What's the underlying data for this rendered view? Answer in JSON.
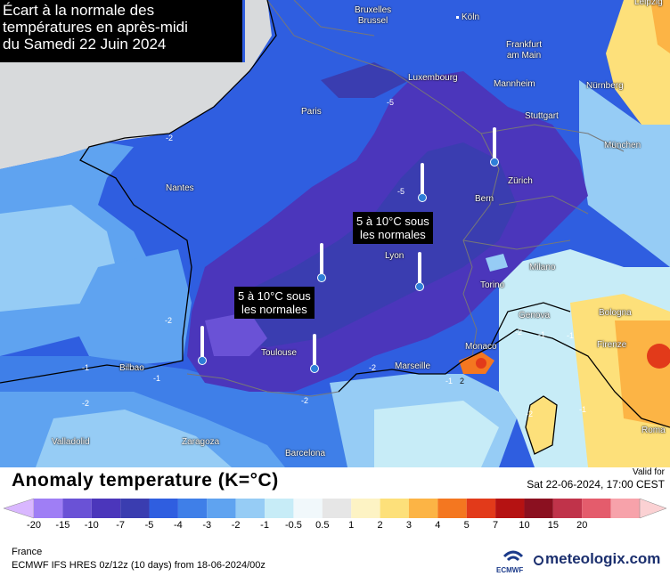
{
  "title_lines": [
    "Écart à la normale des",
    "températures en après-midi",
    "du Samedi 22 Juin 2024"
  ],
  "annotations": [
    {
      "lines": [
        "5 à 10°C sous",
        "les normales"
      ]
    },
    {
      "lines": [
        "5 à 10°C sous",
        "les normales"
      ]
    }
  ],
  "cities": {
    "bruxelles": "Bruxelles\nBrussel",
    "koln": "Köln",
    "frankfurt": "Frankfurt\nam Main",
    "luxembourg": "Luxembourg",
    "mannheim": "Mannheim",
    "nurnberg": "Nürnberg",
    "paris": "Paris",
    "stuttgart": "Stuttgart",
    "munchen": "München",
    "nantes": "Nantes",
    "zurich": "Zürich",
    "bern": "Bern",
    "lyon": "Lyon",
    "milano": "Milano",
    "torino": "Torino",
    "genova": "Genova",
    "bologna": "Bologna",
    "toulouse": "Toulouse",
    "monaco": "Monaco",
    "firenze": "Firenze",
    "bilbao": "Bilbao",
    "marseille": "Marseille",
    "valladolid": "Valladolid",
    "zaragoza": "Zaragoza",
    "barcelona": "Barcelona",
    "roma": "Roma",
    "leipzig": "Leipzig"
  },
  "isolines": [
    "-5",
    "-5",
    "-2",
    "-2",
    "-1",
    "-2",
    "-1",
    "-2",
    "-1",
    "2",
    "-1",
    "-2",
    "-1",
    "-2",
    "-2",
    "-1"
  ],
  "legend": {
    "title": "Anomaly temperature (K=°C)",
    "valid_label": "Valid for",
    "valid_time": "Sat 22-06-2024, 17:00 CEST",
    "ticks": [
      "-20",
      "-15",
      "-10",
      "-7",
      "-5",
      "-4",
      "-3",
      "-2",
      "-1",
      "-0.5",
      "0.5",
      "1",
      "2",
      "3",
      "4",
      "5",
      "7",
      "10",
      "15",
      "20"
    ],
    "colors": [
      "#d9b7ff",
      "#9f7ef5",
      "#6a52d6",
      "#4b36bb",
      "#3a3db0",
      "#2f5ee0",
      "#3f7fe8",
      "#5fa3f0",
      "#96ccf5",
      "#c7ecf7",
      "#f1f8fb",
      "#e6e6e6",
      "#fdf3c4",
      "#fde07a",
      "#fcb445",
      "#f47720",
      "#e23a1a",
      "#b51212",
      "#8b1020",
      "#c0334a",
      "#e45c6c",
      "#f7a2aa",
      "#fbd1d3"
    ],
    "region": "France",
    "model": "ECMWF IFS HRES 0z/12z (10 days) from  18-06-2024/00z",
    "ecmwf_label": "ECMWF",
    "brand": "meteologix.com"
  }
}
